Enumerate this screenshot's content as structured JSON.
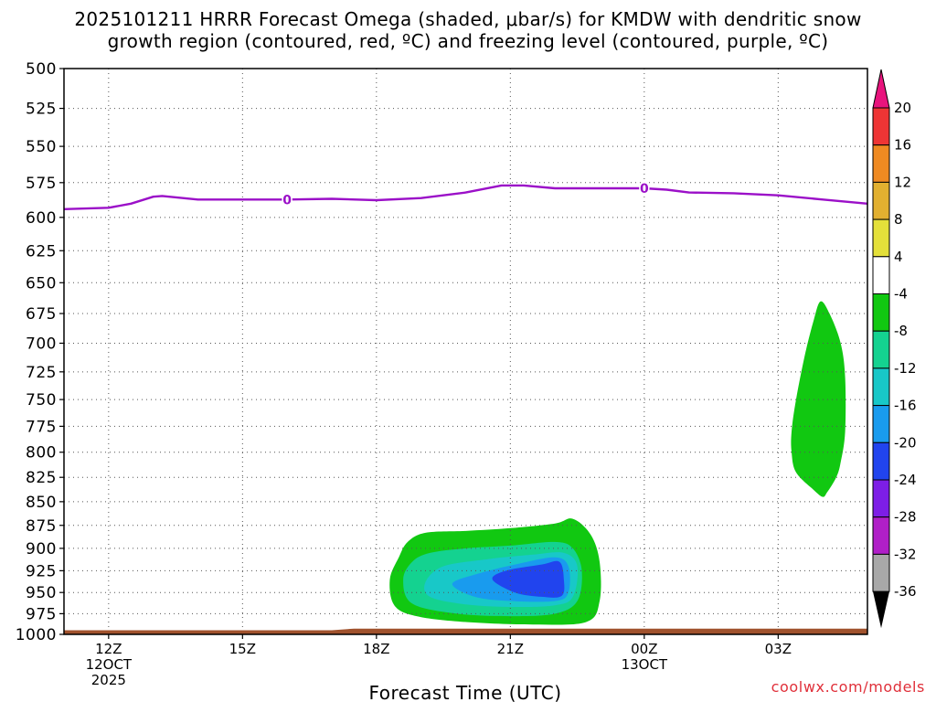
{
  "title_line1": "2025101211 HRRR Forecast Omega (shaded, μbar/s) for KMDW with dendritic snow",
  "title_line2": "growth region (contoured, red, ºC) and freezing level (contoured, purple, ºC)",
  "credit": "coolwx.com/models",
  "chart_data": {
    "type": "heatmap",
    "title": "2025101211 HRRR Forecast Omega (shaded, μbar/s) for KMDW with dendritic snow growth region (contoured, red, ºC) and freezing level (contoured, purple, ºC)",
    "xlabel": "Forecast Time (UTC)",
    "ylabel": "",
    "x_unit": "hours since 2025-10-12 11Z",
    "xlim": [
      0,
      18
    ],
    "ylim": [
      1000,
      500
    ],
    "y_scale": "log-pressure",
    "grid": true,
    "y_ticks": [
      500,
      525,
      550,
      575,
      600,
      625,
      650,
      675,
      700,
      725,
      750,
      775,
      800,
      825,
      850,
      875,
      900,
      925,
      950,
      975,
      1000
    ],
    "x_ticks": [
      {
        "x": 1,
        "line1": "12Z",
        "line2": "12OCT",
        "line3": "2025"
      },
      {
        "x": 4,
        "line1": "15Z",
        "line2": "",
        "line3": ""
      },
      {
        "x": 7,
        "line1": "18Z",
        "line2": "",
        "line3": ""
      },
      {
        "x": 10,
        "line1": "21Z",
        "line2": "",
        "line3": ""
      },
      {
        "x": 13,
        "line1": "00Z",
        "line2": "13OCT",
        "line3": ""
      },
      {
        "x": 16,
        "line1": "03Z",
        "line2": "",
        "line3": ""
      }
    ],
    "colorbar": {
      "labels": [
        "20",
        "16",
        "12",
        "8",
        "4",
        "-4",
        "-8",
        "-12",
        "-16",
        "-20",
        "-24",
        "-28",
        "-32",
        "-36"
      ],
      "top_arrow_color": "#e8147d",
      "bottom_arrow_color": "#000000",
      "bins": [
        {
          "from": 16,
          "to": 20,
          "color": "#ee3535"
        },
        {
          "from": 12,
          "to": 16,
          "color": "#ef8a22"
        },
        {
          "from": 8,
          "to": 12,
          "color": "#e2b030"
        },
        {
          "from": 4,
          "to": 8,
          "color": "#e4e03a"
        },
        {
          "from": -4,
          "to": 4,
          "color": "#ffffff"
        },
        {
          "from": -8,
          "to": -4,
          "color": "#11c811"
        },
        {
          "from": -12,
          "to": -8,
          "color": "#14d290"
        },
        {
          "from": -16,
          "to": -12,
          "color": "#18c8c8"
        },
        {
          "from": -20,
          "to": -16,
          "color": "#199bee"
        },
        {
          "from": -24,
          "to": -20,
          "color": "#2144ee"
        },
        {
          "from": -28,
          "to": -24,
          "color": "#7d1ee6"
        },
        {
          "from": -32,
          "to": -28,
          "color": "#b01fc8"
        },
        {
          "from": -36,
          "to": -32,
          "color": "#a8a8a8"
        }
      ]
    },
    "omega_regions": [
      {
        "name": "afternoon-low-level-ascent",
        "value": -4,
        "outline": [
          [
            7.3,
            935
          ],
          [
            7.5,
            910
          ],
          [
            7.7,
            893
          ],
          [
            8.1,
            883
          ],
          [
            9,
            881
          ],
          [
            10,
            878
          ],
          [
            11,
            873
          ],
          [
            11.4,
            868
          ],
          [
            11.8,
            885
          ],
          [
            12,
            915
          ],
          [
            12,
            960
          ],
          [
            11.7,
            985
          ],
          [
            10.5,
            988
          ],
          [
            9,
            985
          ],
          [
            7.9,
            978
          ],
          [
            7.4,
            965
          ]
        ]
      },
      {
        "name": "afternoon-low-level-ascent",
        "value": -8,
        "outline": [
          [
            7.6,
            935
          ],
          [
            7.8,
            915
          ],
          [
            8.2,
            905
          ],
          [
            9,
            900
          ],
          [
            10,
            897
          ],
          [
            11,
            893
          ],
          [
            11.4,
            900
          ],
          [
            11.6,
            925
          ],
          [
            11.5,
            960
          ],
          [
            11,
            975
          ],
          [
            10,
            978
          ],
          [
            8.8,
            975
          ],
          [
            7.8,
            963
          ]
        ]
      },
      {
        "name": "afternoon-low-level-ascent",
        "value": -12,
        "outline": [
          [
            8.1,
            938
          ],
          [
            8.5,
            920
          ],
          [
            9.5,
            912
          ],
          [
            10.5,
            907
          ],
          [
            11.2,
            905
          ],
          [
            11.5,
            920
          ],
          [
            11.4,
            955
          ],
          [
            11,
            965
          ],
          [
            10,
            967
          ],
          [
            9,
            964
          ],
          [
            8.2,
            955
          ]
        ]
      },
      {
        "name": "afternoon-low-level-ascent",
        "value": -16,
        "outline": [
          [
            8.7,
            940
          ],
          [
            9.3,
            928
          ],
          [
            10.2,
            917
          ],
          [
            11,
            910
          ],
          [
            11.3,
            920
          ],
          [
            11.3,
            950
          ],
          [
            11,
            960
          ],
          [
            10,
            960
          ],
          [
            9.2,
            955
          ]
        ]
      },
      {
        "name": "afternoon-low-level-ascent",
        "value": -20,
        "outline": [
          [
            9.6,
            935
          ],
          [
            9.9,
            925
          ],
          [
            10.7,
            918
          ],
          [
            11.1,
            915
          ],
          [
            11.2,
            935
          ],
          [
            11.15,
            954
          ],
          [
            10.7,
            955
          ],
          [
            10.1,
            950
          ]
        ]
      },
      {
        "name": "late-night-ascent",
        "value": -4,
        "outline": [
          [
            16.3,
            780
          ],
          [
            16.4,
            750
          ],
          [
            16.6,
            710
          ],
          [
            16.8,
            680
          ],
          [
            16.95,
            665
          ],
          [
            17.15,
            675
          ],
          [
            17.4,
            700
          ],
          [
            17.5,
            730
          ],
          [
            17.5,
            780
          ],
          [
            17.4,
            810
          ],
          [
            17.3,
            825
          ],
          [
            17.1,
            840
          ],
          [
            17,
            845
          ],
          [
            16.8,
            838
          ],
          [
            16.4,
            820
          ],
          [
            16.3,
            800
          ]
        ]
      }
    ],
    "freezing_level_0C": {
      "label": "0",
      "points": [
        [
          0,
          594
        ],
        [
          1,
          593
        ],
        [
          1.5,
          590
        ],
        [
          2,
          585
        ],
        [
          2.2,
          584.5
        ],
        [
          3,
          587
        ],
        [
          4,
          587
        ],
        [
          5,
          587
        ],
        [
          6,
          586.5
        ],
        [
          7,
          587.5
        ],
        [
          8,
          586
        ],
        [
          9,
          582
        ],
        [
          9.8,
          577
        ],
        [
          10.3,
          577
        ],
        [
          11,
          579
        ],
        [
          12,
          579
        ],
        [
          13,
          579
        ],
        [
          13.5,
          580
        ],
        [
          14,
          582
        ],
        [
          15,
          582.5
        ],
        [
          16,
          584
        ],
        [
          17,
          587
        ],
        [
          18,
          590
        ]
      ],
      "label_positions": [
        [
          5,
          587
        ],
        [
          13,
          579
        ]
      ]
    },
    "terrain_surface": {
      "color": "#a0522d",
      "points": [
        [
          0,
          995
        ],
        [
          6,
          995
        ],
        [
          6.5,
          993
        ],
        [
          18,
          993
        ]
      ]
    }
  }
}
